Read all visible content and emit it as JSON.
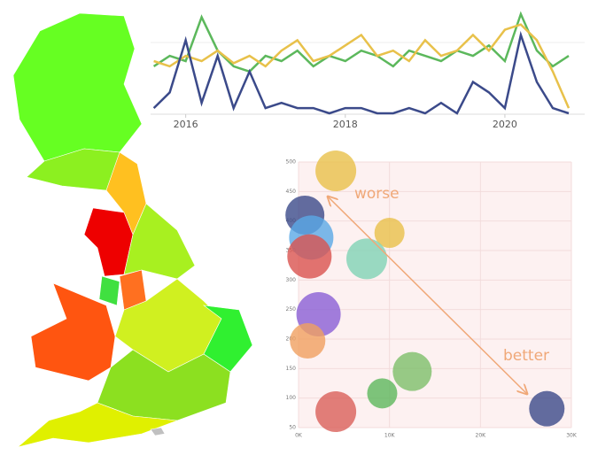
{
  "chart_data": [
    {
      "type": "line",
      "x": [
        2015.6,
        2015.8,
        2016.0,
        2016.2,
        2016.4,
        2016.6,
        2016.8,
        2017.0,
        2017.2,
        2017.4,
        2017.6,
        2017.8,
        2018.0,
        2018.2,
        2018.4,
        2018.6,
        2018.8,
        2019.0,
        2019.2,
        2019.4,
        2019.6,
        2019.8,
        2020.0,
        2020.2,
        2020.4,
        2020.6,
        2020.8
      ],
      "series": [
        {
          "color": "#5cb85c",
          "values": [
            45,
            55,
            50,
            92,
            60,
            45,
            40,
            55,
            50,
            60,
            45,
            55,
            50,
            60,
            55,
            45,
            60,
            55,
            50,
            60,
            55,
            65,
            50,
            95,
            60,
            45,
            55
          ]
        },
        {
          "color": "#e8c14a",
          "values": [
            50,
            45,
            55,
            50,
            60,
            48,
            55,
            45,
            60,
            70,
            50,
            55,
            65,
            75,
            55,
            60,
            50,
            70,
            55,
            60,
            75,
            60,
            80,
            85,
            70,
            40,
            5
          ]
        },
        {
          "color": "#3b4a8a",
          "values": [
            5,
            20,
            70,
            10,
            55,
            5,
            40,
            5,
            10,
            5,
            5,
            0,
            5,
            5,
            0,
            0,
            5,
            0,
            10,
            0,
            30,
            20,
            5,
            75,
            30,
            5,
            0
          ]
        }
      ],
      "xlim": [
        2015.56,
        2021.0
      ],
      "xticks": [
        2016,
        2018,
        2020
      ],
      "ylim": [
        0,
        100
      ]
    },
    {
      "type": "scatter",
      "x": [
        4100,
        700,
        1400,
        1200,
        10000,
        7500,
        2200,
        1000,
        12500,
        9200,
        4100,
        27300
      ],
      "values": [
        485,
        410,
        372,
        340,
        380,
        336,
        242,
        197,
        145,
        108,
        77,
        82
      ],
      "sizes": [
        23,
        22,
        25,
        25,
        17,
        23,
        25,
        20,
        22,
        17,
        23,
        20
      ],
      "colors": [
        "#e8c14a",
        "#3b4a8a",
        "#5aa9e6",
        "#d9534f",
        "#e8c14a",
        "#7fd3b5",
        "#8a5fd6",
        "#f0a060",
        "#7dbf6a",
        "#5cb85c",
        "#d9605a",
        "#3b4a8a"
      ],
      "xlim": [
        0,
        30000
      ],
      "ylim": [
        50,
        500
      ],
      "xticks": [
        {
          "value": 0,
          "label": "0K"
        },
        {
          "value": 10000,
          "label": "10K"
        },
        {
          "value": 20000,
          "label": "20K"
        },
        {
          "value": 30000,
          "label": "30K"
        }
      ],
      "yticks": [
        50,
        100,
        150,
        200,
        250,
        300,
        350,
        400,
        450,
        500
      ],
      "annotations": [
        "worse",
        "better"
      ]
    }
  ]
}
